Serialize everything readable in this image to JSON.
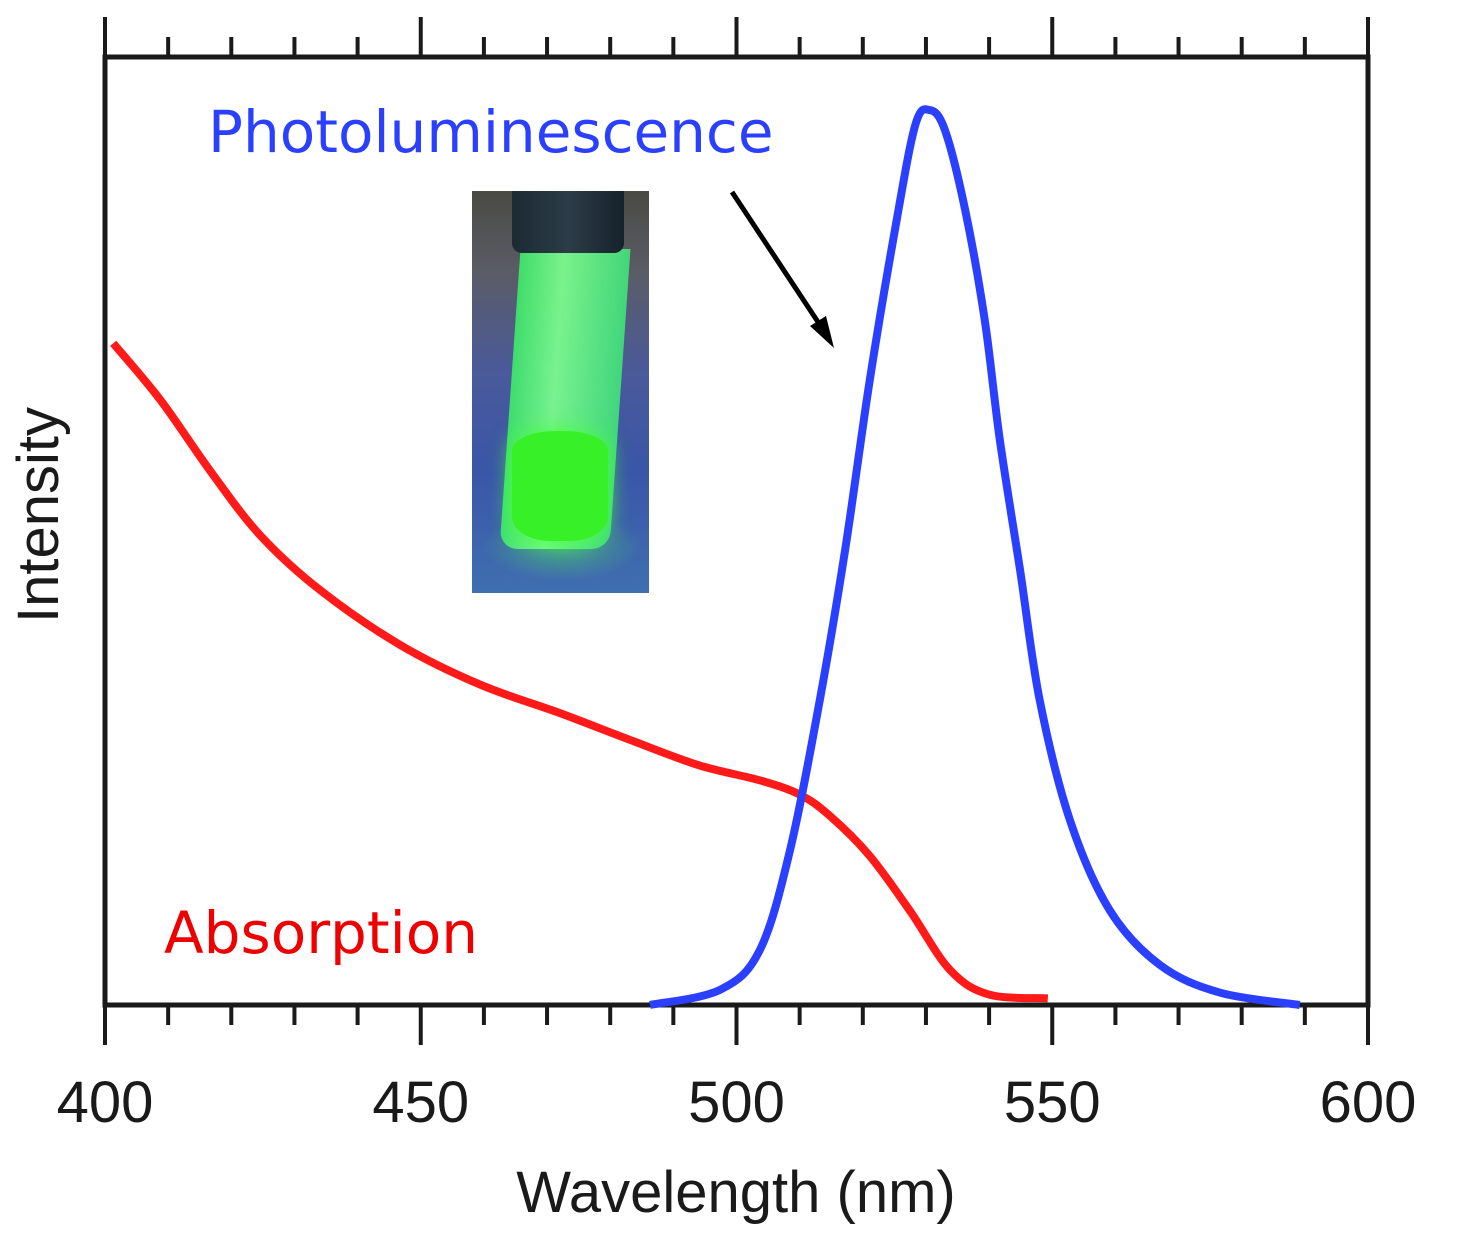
{
  "chart_data": {
    "type": "line",
    "title": "",
    "xlabel": "Wavelength (nm)",
    "ylabel": "Intensity",
    "xlim": [
      400,
      600
    ],
    "ylim": [
      0,
      1
    ],
    "x_major_ticks": [
      400,
      450,
      500,
      550,
      600
    ],
    "x_tick_labels": [
      "400",
      "450",
      "500",
      "550",
      "600"
    ],
    "x_minor_tick_step": 10,
    "grid": false,
    "y_tick_labels_shown": false,
    "series": [
      {
        "name": "Absorption",
        "color": "#ff1a1a",
        "x": [
          401.3,
          408.8,
          416.6,
          424.5,
          434.0,
          446.7,
          459.4,
          472.0,
          483.0,
          494.0,
          503.7,
          510.0,
          514.7,
          521.0,
          527.4,
          533.8,
          540.0,
          549.3
        ],
        "y": [
          0.698,
          0.638,
          0.564,
          0.496,
          0.438,
          0.38,
          0.338,
          0.308,
          0.28,
          0.253,
          0.237,
          0.222,
          0.2,
          0.158,
          0.1,
          0.037,
          0.011,
          0.007
        ]
      },
      {
        "name": "Photoluminescence",
        "color": "#2b3fff",
        "x": [
          486.3,
          497.4,
          503.7,
          508.5,
          513.2,
          517.2,
          521.1,
          525.1,
          528.3,
          530.6,
          533.0,
          536.2,
          539.3,
          541.7,
          544.9,
          548.0,
          552.8,
          559.1,
          567.1,
          576.6,
          589.2
        ],
        "y": [
          0.0,
          0.016,
          0.058,
          0.164,
          0.322,
          0.48,
          0.659,
          0.818,
          0.928,
          0.944,
          0.923,
          0.839,
          0.723,
          0.596,
          0.459,
          0.322,
          0.195,
          0.1,
          0.042,
          0.013,
          0.0
        ]
      }
    ],
    "annotations": [
      {
        "text": "Photoluminescence",
        "color": "#2b3fff",
        "arrow": true,
        "arrow_color": "#000000"
      },
      {
        "text": "Absorption",
        "color": "#ee0000",
        "arrow": false
      }
    ],
    "inset": {
      "description": "photo of vial with glowing green fluorescent solution under UV light"
    }
  }
}
